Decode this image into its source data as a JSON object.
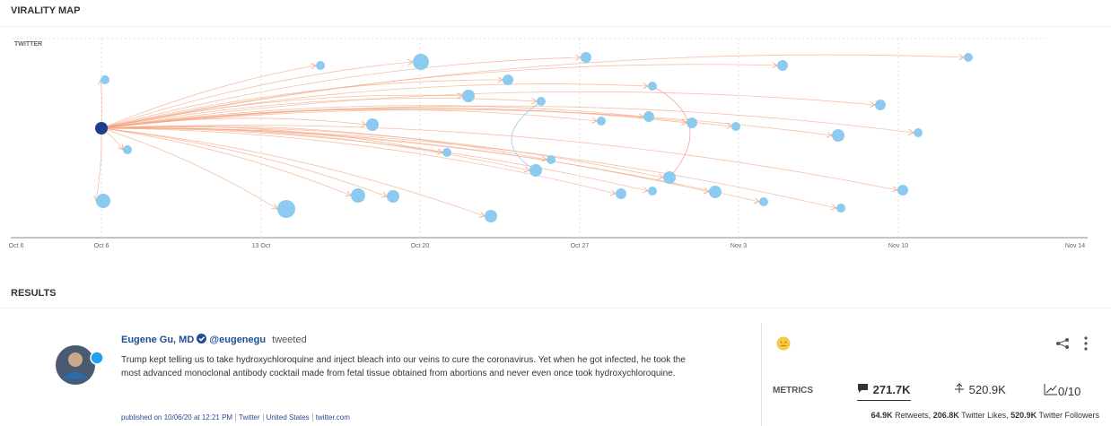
{
  "virality_map": {
    "title": "VIRALITY MAP",
    "platform": "TWITTER",
    "axis_labels": [
      "Oct 6",
      "Oct 6",
      "13 Oct",
      "Oct 20",
      "Oct 27",
      "Nov 3",
      "Nov 10",
      "Nov 14"
    ]
  },
  "results": {
    "title": "RESULTS",
    "post": {
      "author": "Eugene Gu, MD",
      "handle": "@eugenegu",
      "action": "tweeted",
      "text": [
        "Trump kept telling us to take hydroxychloroquine and inject bleach into our veins to cure the coronavirus. Yet when he got infected, he took the",
        "most advanced monoclonal antibody cocktail made from fetal tissue obtained from abortions and never even once took hydroxychloroquine."
      ],
      "meta": [
        "published on 10/06/20 at 12:21 PM",
        "Twitter",
        "United States",
        "twitter.com"
      ]
    },
    "metrics": {
      "label": "METRICS",
      "items": [
        "271.7K",
        "520.9K",
        "0/10"
      ],
      "summary": [
        {
          "value": "64.9K",
          "label": "Retweets,"
        },
        {
          "value": "206.8K",
          "label": "Twitter Likes,"
        },
        {
          "value": "520.9K",
          "label": "Twitter Followers"
        }
      ]
    }
  }
}
